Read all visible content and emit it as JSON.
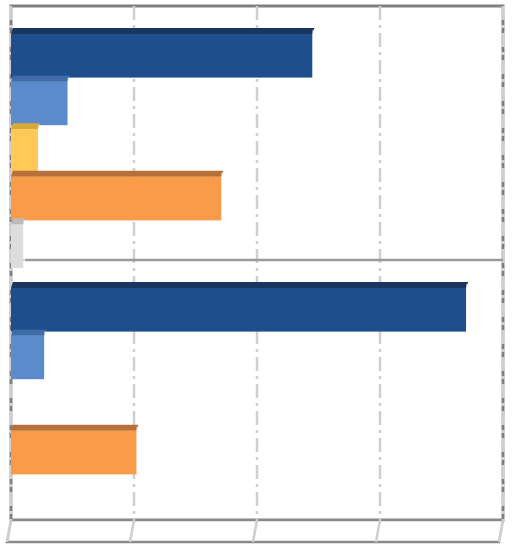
{
  "chart_data": {
    "type": "bar",
    "orientation": "horizontal",
    "style": "3d-clustered",
    "grid": true,
    "legend": "none",
    "xlim": [
      0,
      4
    ],
    "categories": [
      "",
      ""
    ],
    "series": [
      {
        "values": [
          2.45,
          3.7
        ],
        "color": "#1F4E8C",
        "shadow": "#18365E"
      },
      {
        "values": [
          0.46,
          0.27
        ],
        "color": "#5B8BCB",
        "shadow": "#3F6BA8"
      },
      {
        "values": [
          0.22,
          0.0
        ],
        "color": "#FFC857",
        "shadow": "#D9A83A"
      },
      {
        "values": [
          1.71,
          1.02
        ],
        "color": "#F99B48",
        "shadow": "#B8703A"
      },
      {
        "values": [
          0.1,
          0.0
        ],
        "color": "#DDDDDD",
        "shadow": "#BBBBBB"
      }
    ]
  }
}
